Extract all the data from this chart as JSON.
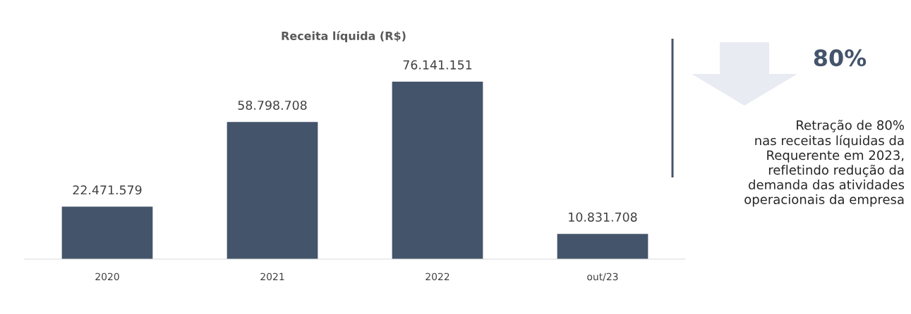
{
  "chart_data": {
    "type": "bar",
    "title": "Receita líquida (R$)",
    "categories": [
      "2020",
      "2021",
      "2022",
      "out/23"
    ],
    "values": [
      22471579,
      58798708,
      76141151,
      10831708
    ],
    "value_labels": [
      "22.471.579",
      "58.798.708",
      "76.141.151",
      "10.831.708"
    ],
    "color": "#44546a",
    "grid": false,
    "legend": false,
    "tick_labels": "x",
    "annotations": [
      "80%",
      "Retração de 80%\nnas receitas líquidas da\nRequerente em 2023,\nrefletindo redução da\ndemanda das atividades\noperacionais da empresa"
    ]
  }
}
